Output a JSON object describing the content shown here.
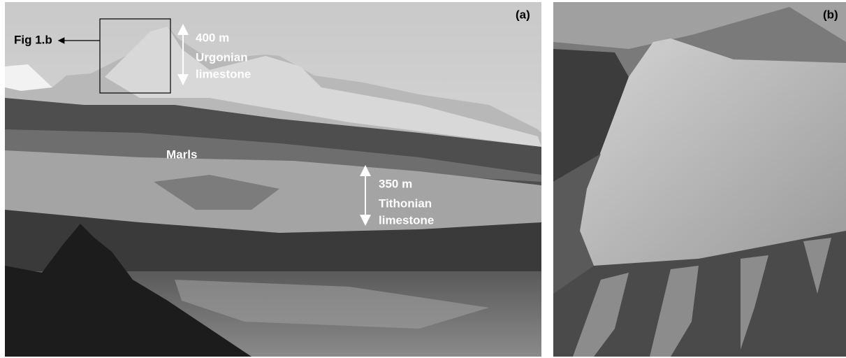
{
  "panels": [
    {
      "label": "(a)",
      "annotations": {
        "inset_label": "Fig 1.b",
        "upper_thickness": "400 m",
        "upper_unit": [
          "Urgonian",
          "limestone"
        ],
        "marls": "Marls",
        "lower_thickness": "350 m",
        "lower_unit": [
          "Tithonian",
          "limestone"
        ]
      }
    },
    {
      "label": "(b)"
    }
  ]
}
